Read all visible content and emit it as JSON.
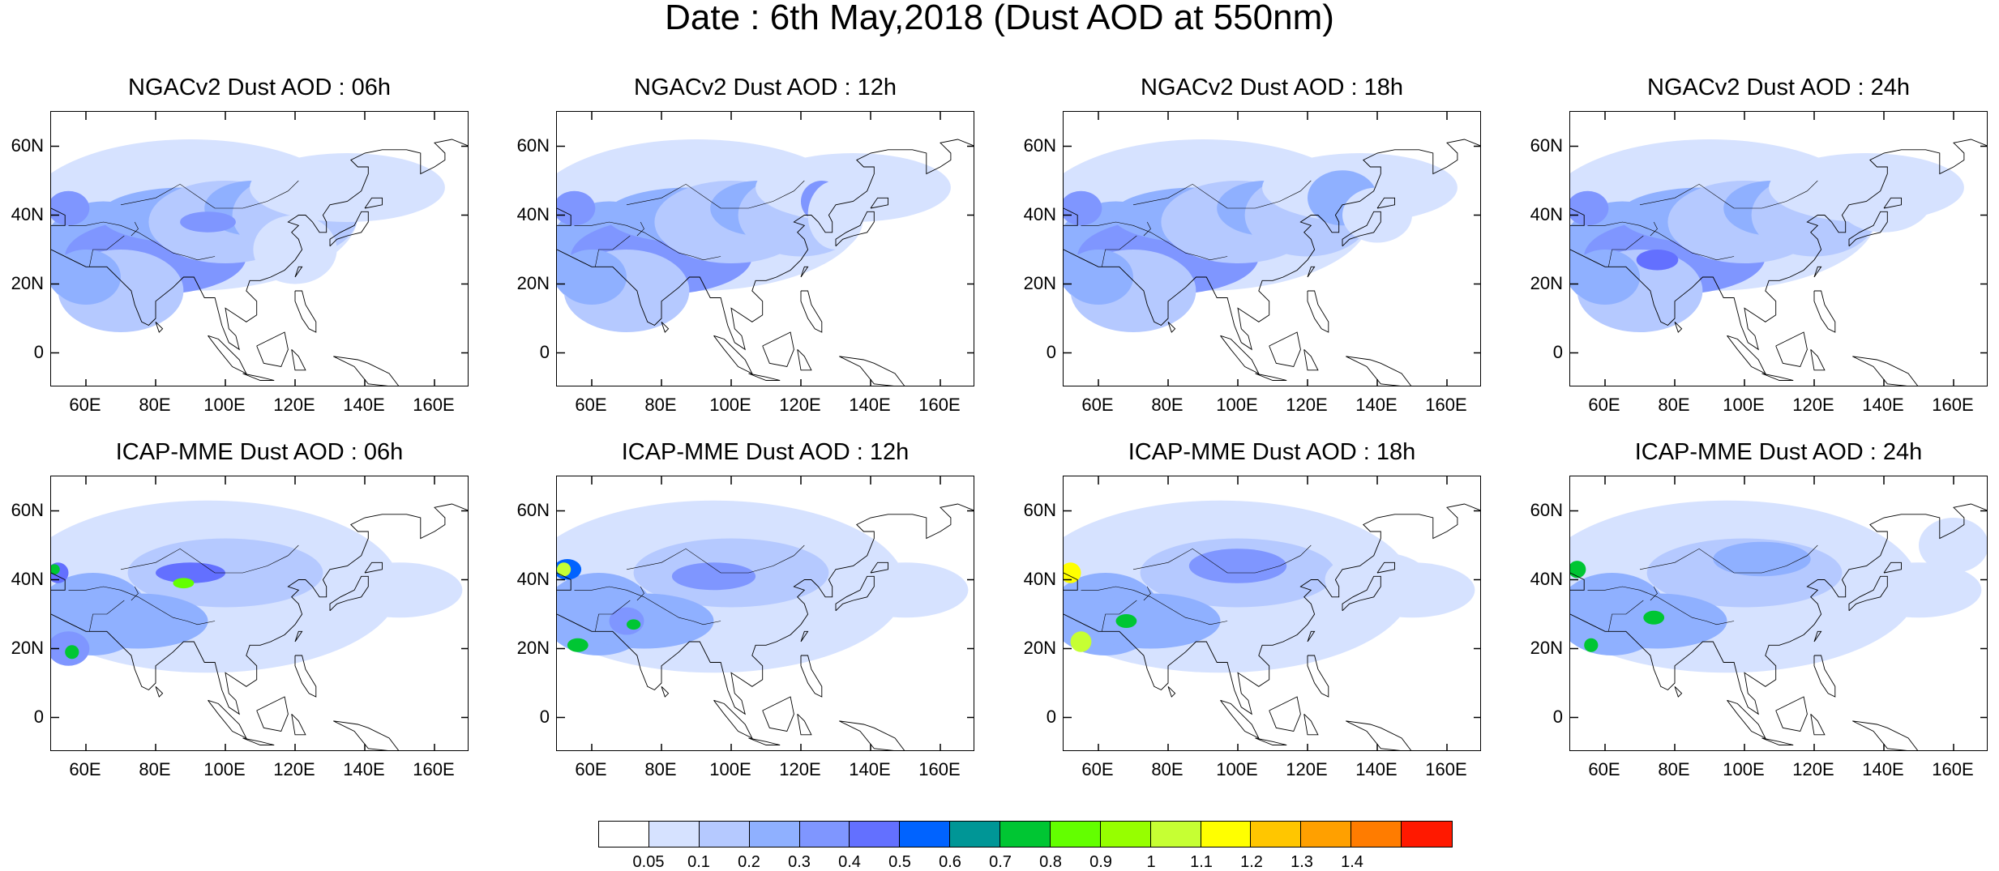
{
  "title": "Date : 6th May,2018 (Dust AOD at 550nm)",
  "panels": [
    {
      "title": "NGACv2 Dust AOD : 06h",
      "model": "NGACv2",
      "lead": "06h"
    },
    {
      "title": "NGACv2 Dust AOD : 12h",
      "model": "NGACv2",
      "lead": "12h"
    },
    {
      "title": "NGACv2 Dust AOD : 18h",
      "model": "NGACv2",
      "lead": "18h"
    },
    {
      "title": "NGACv2 Dust AOD : 24h",
      "model": "NGACv2",
      "lead": "24h"
    },
    {
      "title": "ICAP-MME Dust AOD : 06h",
      "model": "ICAP-MME",
      "lead": "06h"
    },
    {
      "title": "ICAP-MME Dust AOD : 12h",
      "model": "ICAP-MME",
      "lead": "12h"
    },
    {
      "title": "ICAP-MME Dust AOD : 18h",
      "model": "ICAP-MME",
      "lead": "18h"
    },
    {
      "title": "ICAP-MME Dust AOD : 24h",
      "model": "ICAP-MME",
      "lead": "24h"
    }
  ],
  "lat_ticks": [
    "60N",
    "40N",
    "20N",
    "0"
  ],
  "lon_ticks": [
    "60E",
    "80E",
    "100E",
    "120E",
    "140E",
    "160E"
  ],
  "map_extent": {
    "lon": [
      50,
      170
    ],
    "lat": [
      -10,
      70
    ]
  },
  "colorbar": {
    "colors": [
      "#ffffff",
      "#d6e2ff",
      "#b5c9ff",
      "#8fb0ff",
      "#7f96ff",
      "#6370ff",
      "#0063ff",
      "#009696",
      "#00c633",
      "#63ff00",
      "#96ff00",
      "#c6ff33",
      "#ffff00",
      "#ffc600",
      "#ffa000",
      "#ff7c00",
      "#ff1900"
    ],
    "labels": [
      "0.05",
      "0.1",
      "0.2",
      "0.3",
      "0.4",
      "0.5",
      "0.6",
      "0.7",
      "0.8",
      "0.9",
      "1",
      "1.1",
      "1.2",
      "1.3",
      "1.4"
    ]
  }
}
